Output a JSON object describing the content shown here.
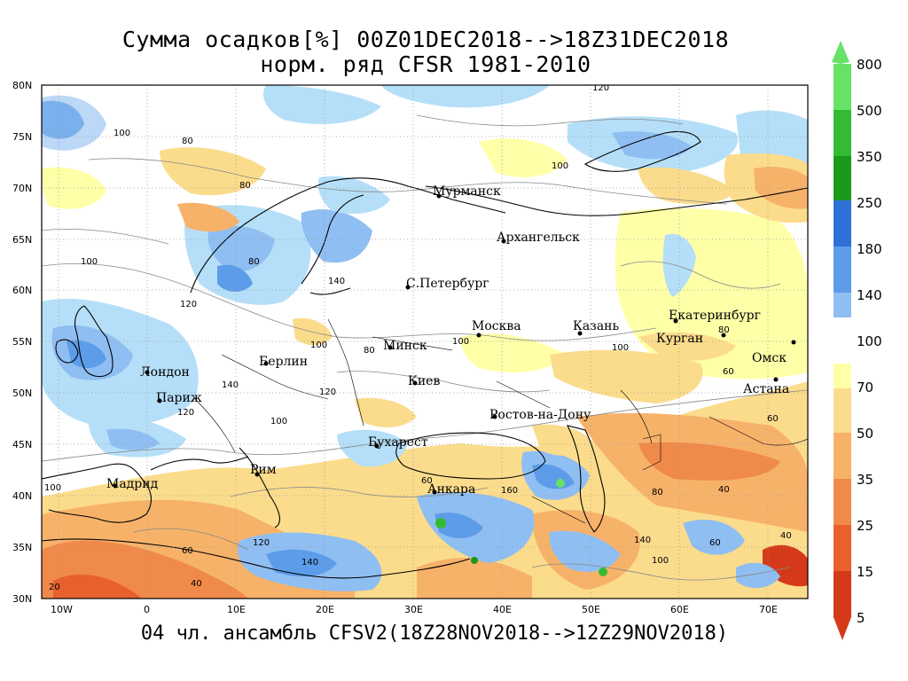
{
  "title": {
    "line1": "Сумма осадков[%] 00Z01DEC2018-->18Z31DEC2018",
    "line2": "норм. ряд CFSR 1981-2010"
  },
  "footer": "04 чл. ансамбль CFSV2(18Z28NOV2018-->12Z29NOV2018)",
  "map": {
    "lat_labels": [
      "80N",
      "75N",
      "70N",
      "65N",
      "60N",
      "55N",
      "50N",
      "45N",
      "40N",
      "35N",
      "30N"
    ],
    "lon_labels": [
      "10W",
      "0",
      "10E",
      "20E",
      "30E",
      "40E",
      "50E",
      "60E",
      "70E"
    ],
    "cities": [
      "Мурманск",
      "Архангельск",
      "С.Петербург",
      "Москва",
      "Казань",
      "Екатеринбург",
      "Курган",
      "Омск",
      "Астана",
      "Минск",
      "Берлин",
      "Лондон",
      "Париж",
      "Киев",
      "Ростов-на-Дону",
      "Бухарест",
      "Рим",
      "Мадрид",
      "Анкара"
    ],
    "contour_labels": [
      "120",
      "100",
      "80",
      "100",
      "80",
      "100",
      "80",
      "120",
      "100",
      "100",
      "80",
      "140",
      "100",
      "80",
      "60",
      "120",
      "140",
      "100",
      "120",
      "100",
      "60",
      "160",
      "140",
      "120",
      "140",
      "100",
      "80",
      "60",
      "40",
      "20",
      "40",
      "60",
      "40",
      "60"
    ]
  },
  "colorbar": {
    "labels": [
      "800",
      "500",
      "350",
      "250",
      "180",
      "140",
      "100",
      "70",
      "50",
      "35",
      "25",
      "15",
      "5"
    ],
    "colors": {
      "c800": "#66e266",
      "c500": "#33bb33",
      "c350": "#1a9a1a",
      "c250": "#2e6fd8",
      "c180": "#5c9ce8",
      "c140": "#8fbef2",
      "c100": "#b5dff8",
      "c70": "#ffffa8",
      "c50": "#fbdc8c",
      "c35": "#f7b26a",
      "c25": "#f08a4a",
      "c15": "#e8602e",
      "c5": "#d43a1a"
    }
  }
}
